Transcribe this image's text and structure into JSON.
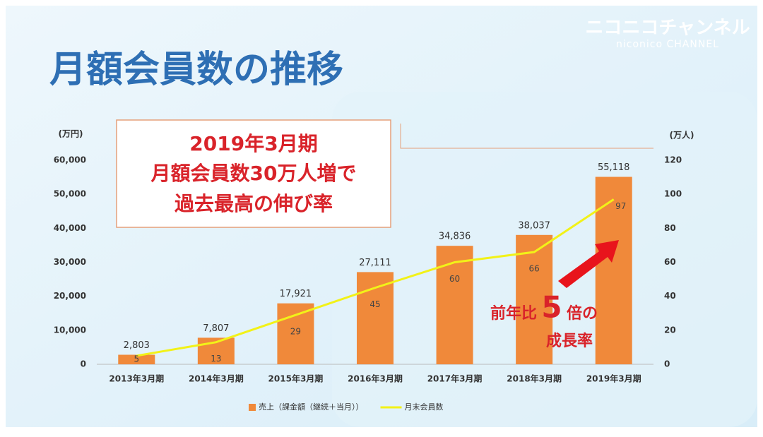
{
  "chart_data": {
    "type": "bar",
    "logo": {
      "text": "ニコニコチャンネル",
      "subtext": "niconico CHANNEL"
    },
    "title": "月額会員数の推移",
    "callout": [
      "2019年3月期",
      "月額会員数30万人増で",
      "過去最高の伸び率"
    ],
    "annotation": {
      "prefix": "前年比",
      "number": "5",
      "suffix": "倍の",
      "line2": "成長率"
    },
    "y_label": "(万円)",
    "y2_label": "(万人)",
    "categories": [
      "2013年3月期",
      "2014年3月期",
      "2015年3月期",
      "2016年3月期",
      "2017年3月期",
      "2018年3月期",
      "2019年3月期"
    ],
    "series": [
      {
        "name": "売上（課金額（継続＋当月））",
        "type": "bar",
        "color": "#f0893a",
        "values": [
          2803,
          7807,
          17921,
          27111,
          34836,
          38037,
          55118
        ],
        "value_labels": [
          "2,803",
          "7,807",
          "17,921",
          "27,111",
          "34,836",
          "38,037",
          "55,118"
        ]
      },
      {
        "name": "月末会員数",
        "type": "line",
        "axis": "y2",
        "color": "#f2f218",
        "values": [
          5,
          13,
          29,
          45,
          60,
          66,
          97
        ]
      }
    ],
    "ylim": [
      0,
      60000
    ],
    "yticks": [
      0,
      {
        "value": 10000,
        "label": "10,000"
      },
      {
        "value": 20000,
        "label": "20,000"
      },
      {
        "value": 30000,
        "label": "30,000"
      },
      {
        "value": 40000,
        "label": "40,000"
      },
      {
        "value": 50000,
        "label": "50,000"
      },
      {
        "value": 60000,
        "label": "60,000"
      }
    ],
    "y2lim": [
      0,
      120
    ],
    "y2ticks": [
      0,
      20,
      40,
      60,
      80,
      100,
      120
    ]
  }
}
